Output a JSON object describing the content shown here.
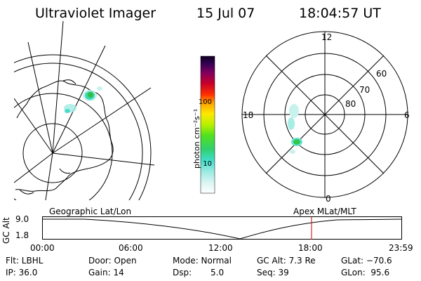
{
  "header": {
    "instrument": "Ultraviolet Imager",
    "date": "15 Jul 07",
    "time": "18:04:57 UT"
  },
  "colorbar": {
    "unit_label": "photon cm⁻²s⁻¹",
    "ticks": [
      "100",
      "10"
    ]
  },
  "polar_plot": {
    "mlt_labels": {
      "top": "12",
      "bottom": "0",
      "left": "18",
      "right": "6"
    },
    "lat_labels": [
      "60",
      "70",
      "80"
    ]
  },
  "timeline": {
    "left_title": "Geographic Lat/Lon",
    "right_title": "Apex MLat/MLT",
    "y_axis_label": "GC Alt",
    "y_ticks": [
      "9.0",
      "1.8"
    ],
    "x_ticks": [
      "00:00",
      "06:00",
      "12:00",
      "18:00",
      "23:59"
    ],
    "current_marker_color": "#cc0000"
  },
  "status": {
    "filter": "Flt: LBHL",
    "ip": "IP: 36.0",
    "door": "Door: Open",
    "gain": "Gain: 14",
    "mode": "Mode: Normal",
    "dsp_label": "Dsp:",
    "dsp_value": "5.0",
    "gc_alt": "GC Alt: 7.3 Re",
    "seq": "Seq: 39",
    "glat": "GLat: −70.6",
    "glon": "GLon:  95.6"
  }
}
